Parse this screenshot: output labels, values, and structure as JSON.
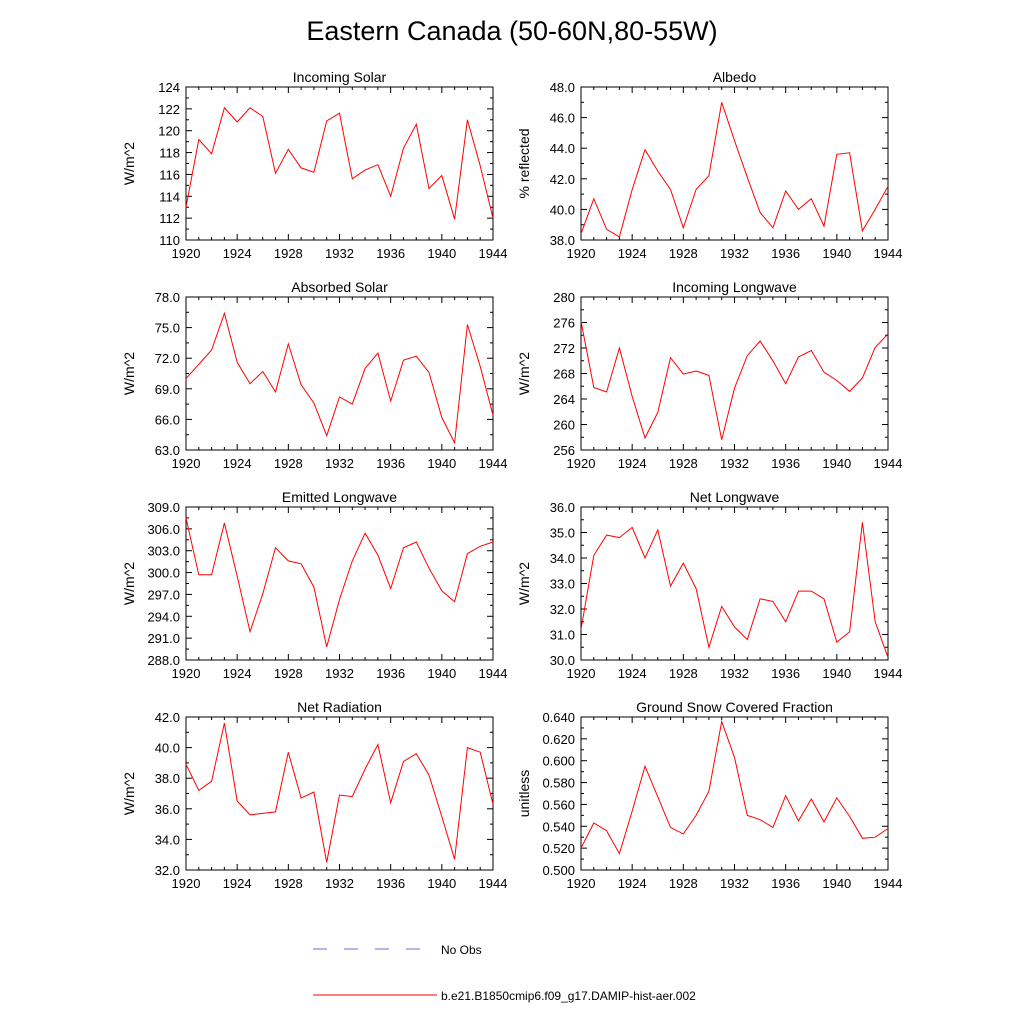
{
  "title": "Eastern Canada (50-60N,80-55W)",
  "colors": {
    "model": "#ff0000",
    "obs": "#6b6bd6",
    "axis": "#000000"
  },
  "legend": {
    "obs_label": "No Obs",
    "model_label": "b.e21.B1850cmip6.f09_g17.DAMIP-hist-aer.002"
  },
  "chart_data": [
    {
      "type": "line",
      "title": "Incoming Solar",
      "ylabel": "W/m^2",
      "xlim": [
        1920,
        1944
      ],
      "ylim": [
        110,
        124
      ],
      "xticks": [
        "1920",
        "1924",
        "1928",
        "1932",
        "1936",
        "1940",
        "1944"
      ],
      "yticks": [
        "110",
        "112",
        "114",
        "116",
        "118",
        "120",
        "122",
        "124"
      ],
      "series": [
        {
          "values": [
            113.0,
            119.2,
            117.9,
            122.1,
            120.8,
            122.1,
            121.3,
            116.1,
            118.3,
            116.6,
            116.2,
            120.9,
            121.6,
            115.6,
            116.4,
            116.9,
            114.0,
            118.4,
            120.6,
            114.7,
            115.9,
            111.9,
            121.0,
            116.8,
            112.0
          ]
        }
      ]
    },
    {
      "type": "line",
      "title": "Albedo",
      "ylabel": "% reflected",
      "xlim": [
        1920,
        1944
      ],
      "ylim": [
        38,
        48
      ],
      "xticks": [
        "1920",
        "1924",
        "1928",
        "1932",
        "1936",
        "1940",
        "1944"
      ],
      "yticks": [
        "38.0",
        "40.0",
        "42.0",
        "44.0",
        "46.0",
        "48.0"
      ],
      "series": [
        {
          "values": [
            38.4,
            40.7,
            38.7,
            38.2,
            41.3,
            43.9,
            42.5,
            41.3,
            38.8,
            41.3,
            42.2,
            47.0,
            44.5,
            42.1,
            39.8,
            38.8,
            41.2,
            40.0,
            40.7,
            38.9,
            43.6,
            43.7,
            38.6,
            40.0,
            41.5
          ]
        }
      ]
    },
    {
      "type": "line",
      "title": "Absorbed Solar",
      "ylabel": "W/m^2",
      "xlim": [
        1920,
        1944
      ],
      "ylim": [
        63,
        78
      ],
      "xticks": [
        "1920",
        "1924",
        "1928",
        "1932",
        "1936",
        "1940",
        "1944"
      ],
      "yticks": [
        "63.0",
        "66.0",
        "69.0",
        "72.0",
        "75.0",
        "78.0"
      ],
      "series": [
        {
          "values": [
            70.0,
            71.4,
            72.8,
            76.4,
            71.6,
            69.5,
            70.7,
            68.7,
            73.4,
            69.4,
            67.6,
            64.4,
            68.2,
            67.5,
            71.0,
            72.5,
            67.8,
            71.8,
            72.2,
            70.6,
            66.2,
            63.7,
            75.3,
            71.2,
            66.4
          ]
        }
      ]
    },
    {
      "type": "line",
      "title": "Incoming Longwave",
      "ylabel": "W/m^2",
      "xlim": [
        1920,
        1944
      ],
      "ylim": [
        256,
        280
      ],
      "xticks": [
        "1920",
        "1924",
        "1928",
        "1932",
        "1936",
        "1940",
        "1944"
      ],
      "yticks": [
        "256",
        "260",
        "264",
        "268",
        "272",
        "276",
        "280"
      ],
      "series": [
        {
          "values": [
            276.2,
            265.8,
            265.1,
            272.0,
            264.4,
            257.9,
            261.9,
            270.5,
            267.9,
            268.4,
            267.7,
            257.6,
            265.7,
            270.8,
            273.1,
            270.0,
            266.4,
            270.6,
            271.6,
            268.2,
            266.9,
            265.2,
            267.3,
            272.1,
            274.2
          ]
        }
      ]
    },
    {
      "type": "line",
      "title": "Emitted Longwave",
      "ylabel": "W/m^2",
      "xlim": [
        1920,
        1944
      ],
      "ylim": [
        288,
        309
      ],
      "xticks": [
        "1920",
        "1924",
        "1928",
        "1932",
        "1936",
        "1940",
        "1944"
      ],
      "yticks": [
        "288.0",
        "291.0",
        "294.0",
        "297.0",
        "300.0",
        "303.0",
        "306.0",
        "309.0"
      ],
      "series": [
        {
          "values": [
            307.5,
            299.7,
            299.7,
            306.8,
            299.5,
            291.9,
            297.1,
            303.4,
            301.6,
            301.2,
            298.0,
            289.8,
            296.3,
            301.6,
            305.4,
            302.4,
            297.8,
            303.4,
            304.2,
            300.6,
            297.5,
            296.0,
            302.6,
            303.6,
            304.2
          ]
        }
      ]
    },
    {
      "type": "line",
      "title": "Net Longwave",
      "ylabel": "W/m^2",
      "xlim": [
        1920,
        1944
      ],
      "ylim": [
        30,
        36
      ],
      "xticks": [
        "1920",
        "1924",
        "1928",
        "1932",
        "1936",
        "1940",
        "1944"
      ],
      "yticks": [
        "30.0",
        "31.0",
        "32.0",
        "33.0",
        "34.0",
        "35.0",
        "36.0"
      ],
      "series": [
        {
          "values": [
            31.2,
            34.1,
            34.9,
            34.8,
            35.2,
            34.0,
            35.1,
            32.9,
            33.8,
            32.8,
            30.5,
            32.1,
            31.3,
            30.8,
            32.4,
            32.3,
            31.5,
            32.7,
            32.7,
            32.4,
            30.7,
            31.1,
            35.4,
            31.5,
            30.1
          ]
        }
      ]
    },
    {
      "type": "line",
      "title": "Net Radiation",
      "ylabel": "W/m^2",
      "xlim": [
        1920,
        1944
      ],
      "ylim": [
        32,
        42
      ],
      "xticks": [
        "1920",
        "1924",
        "1928",
        "1932",
        "1936",
        "1940",
        "1944"
      ],
      "yticks": [
        "32.0",
        "34.0",
        "36.0",
        "38.0",
        "40.0",
        "42.0"
      ],
      "series": [
        {
          "values": [
            38.9,
            37.2,
            37.8,
            41.6,
            36.5,
            35.6,
            35.7,
            35.8,
            39.7,
            36.7,
            37.1,
            32.5,
            36.9,
            36.8,
            38.6,
            40.2,
            36.4,
            39.1,
            39.6,
            38.2,
            35.5,
            32.7,
            40.0,
            39.7,
            36.3
          ]
        }
      ]
    },
    {
      "type": "line",
      "title": "Ground Snow Covered Fraction",
      "ylabel": "unitless",
      "xlim": [
        1920,
        1944
      ],
      "ylim": [
        0.5,
        0.64
      ],
      "xticks": [
        "1920",
        "1924",
        "1928",
        "1932",
        "1936",
        "1940",
        "1944"
      ],
      "yticks": [
        "0.500",
        "0.520",
        "0.540",
        "0.560",
        "0.580",
        "0.600",
        "0.620",
        "0.640"
      ],
      "series": [
        {
          "values": [
            0.52,
            0.543,
            0.536,
            0.515,
            0.554,
            0.595,
            0.567,
            0.539,
            0.533,
            0.55,
            0.572,
            0.636,
            0.603,
            0.55,
            0.546,
            0.539,
            0.568,
            0.545,
            0.565,
            0.544,
            0.566,
            0.549,
            0.529,
            0.53,
            0.538
          ]
        }
      ]
    }
  ]
}
